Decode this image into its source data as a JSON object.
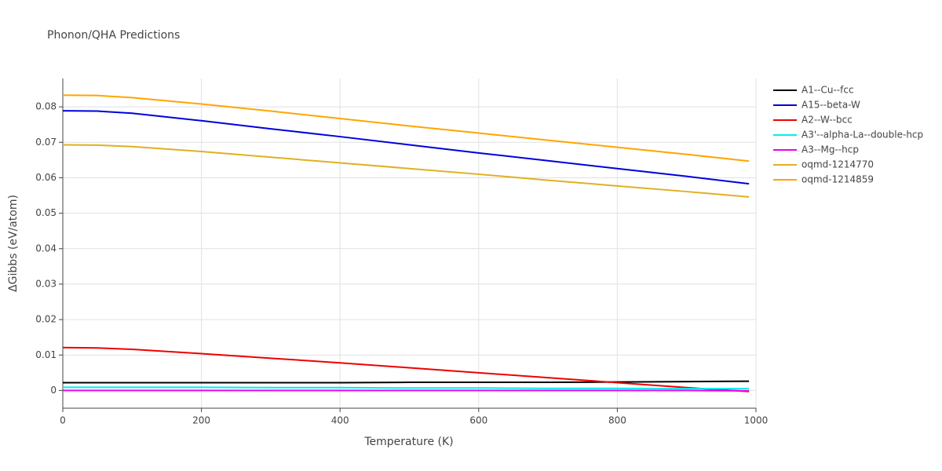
{
  "chart_data": {
    "type": "line",
    "title": "Phonon/QHA Predictions",
    "x_label": "Temperature (K)",
    "y_label": "ΔGibbs (eV/atom)",
    "x": [
      0,
      50,
      100,
      200,
      300,
      400,
      500,
      600,
      700,
      800,
      900,
      990
    ],
    "series": [
      {
        "name": "A1--Cu--fcc",
        "color": "#000000",
        "values": [
          0.0022,
          0.0022,
          0.0022,
          0.0022,
          0.0022,
          0.0022,
          0.0023,
          0.0023,
          0.0023,
          0.0024,
          0.0025,
          0.0026
        ]
      },
      {
        "name": "A15--beta-W",
        "color": "#0000dd",
        "values": [
          0.0789,
          0.0788,
          0.0782,
          0.0761,
          0.0738,
          0.0716,
          0.0693,
          0.067,
          0.0648,
          0.0626,
          0.0604,
          0.0583
        ]
      },
      {
        "name": "A2--W--bcc",
        "color": "#ee0000",
        "values": [
          0.0121,
          0.012,
          0.0116,
          0.0104,
          0.0091,
          0.0078,
          0.0064,
          0.005,
          0.0036,
          0.0022,
          0.0008,
          -0.0003
        ]
      },
      {
        "name": "A3'--alpha-La--double-hcp",
        "color": "#00eeee",
        "values": [
          0.0009,
          0.0009,
          0.0009,
          0.0009,
          0.0008,
          0.0008,
          0.0007,
          0.0007,
          0.0006,
          0.0006,
          0.0005,
          0.0005
        ]
      },
      {
        "name": "A3--Mg--hcp",
        "color": "#ee00ee",
        "values": [
          0.0,
          0.0,
          0.0,
          0.0,
          0.0,
          0.0,
          0.0,
          0.0,
          0.0,
          0.0,
          0.0,
          -0.0001
        ]
      },
      {
        "name": "oqmd-1214770",
        "color": "#e0b020",
        "values": [
          0.0693,
          0.0692,
          0.0688,
          0.0674,
          0.0658,
          0.0642,
          0.0626,
          0.061,
          0.0593,
          0.0577,
          0.0561,
          0.0546
        ]
      },
      {
        "name": "oqmd-1214859",
        "color": "#ffa500",
        "values": [
          0.0833,
          0.0832,
          0.0826,
          0.0808,
          0.0788,
          0.0767,
          0.0746,
          0.0726,
          0.0706,
          0.0686,
          0.0666,
          0.0647
        ]
      }
    ],
    "xlim": [
      0,
      1000
    ],
    "xticks": [
      0,
      200,
      400,
      600,
      800,
      1000
    ],
    "ylim": [
      -0.005,
      0.088
    ],
    "yticks": [
      0,
      0.01,
      0.02,
      0.03,
      0.04,
      0.05,
      0.06,
      0.07,
      0.08
    ],
    "grid": true,
    "legend": "right"
  }
}
